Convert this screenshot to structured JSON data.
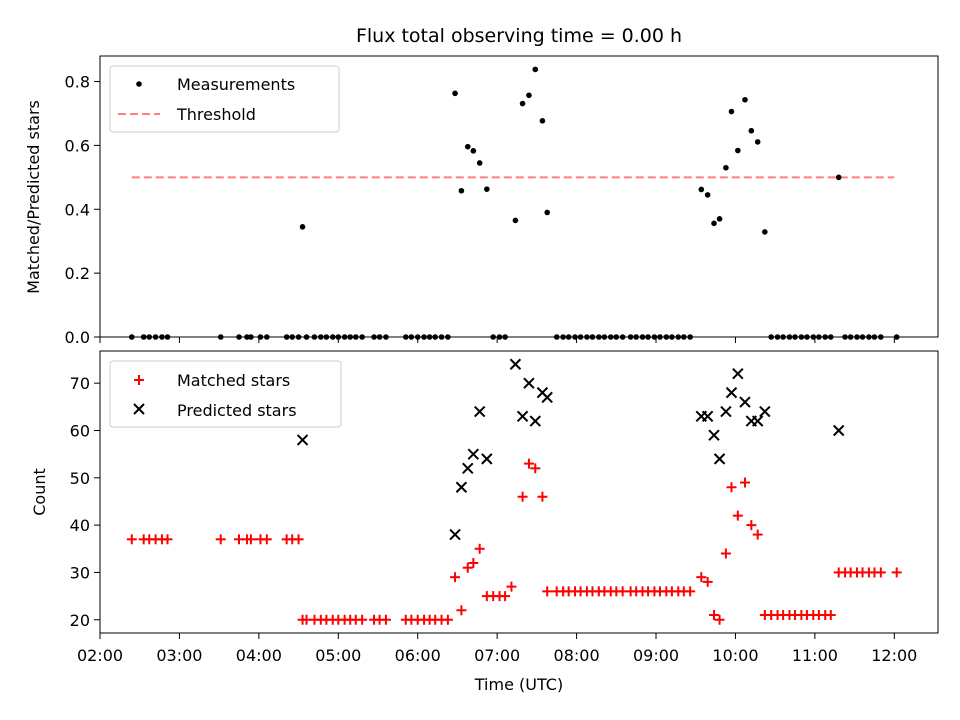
{
  "chart_data": [
    {
      "type": "scatter",
      "title": "Flux total observing time = 0.00 h",
      "xlabel": "",
      "ylabel": "Matched/Predicted stars",
      "ylim": [
        0,
        0.88
      ],
      "yticks": [
        "0.0",
        "0.2",
        "0.4",
        "0.6",
        "0.8"
      ],
      "ytick_values": [
        0,
        0.2,
        0.4,
        0.6,
        0.8
      ],
      "grid": false,
      "legend": "top-left",
      "series": [
        {
          "name": "Measurements",
          "marker": "dot",
          "color": "#000000",
          "points": [
            [
              2.4,
              0
            ],
            [
              2.55,
              0
            ],
            [
              2.62,
              0
            ],
            [
              2.7,
              0
            ],
            [
              2.78,
              0
            ],
            [
              2.85,
              0
            ],
            [
              3.52,
              0
            ],
            [
              3.75,
              0
            ],
            [
              3.85,
              0
            ],
            [
              3.9,
              0
            ],
            [
              4.02,
              0
            ],
            [
              4.1,
              0
            ],
            [
              4.35,
              0
            ],
            [
              4.42,
              0
            ],
            [
              4.5,
              0
            ],
            [
              4.55,
              0.345
            ],
            [
              4.6,
              0
            ],
            [
              4.7,
              0
            ],
            [
              4.78,
              0
            ],
            [
              4.85,
              0
            ],
            [
              4.93,
              0
            ],
            [
              5.0,
              0
            ],
            [
              5.08,
              0
            ],
            [
              5.15,
              0
            ],
            [
              5.22,
              0
            ],
            [
              5.3,
              0
            ],
            [
              5.45,
              0
            ],
            [
              5.52,
              0
            ],
            [
              5.6,
              0
            ],
            [
              5.85,
              0
            ],
            [
              5.92,
              0
            ],
            [
              6.0,
              0
            ],
            [
              6.08,
              0
            ],
            [
              6.15,
              0
            ],
            [
              6.22,
              0
            ],
            [
              6.3,
              0
            ],
            [
              6.38,
              0
            ],
            [
              6.47,
              0.763
            ],
            [
              6.55,
              0.458
            ],
            [
              6.63,
              0.596
            ],
            [
              6.7,
              0.583
            ],
            [
              6.78,
              0.545
            ],
            [
              6.87,
              0.463
            ],
            [
              6.95,
              0
            ],
            [
              7.03,
              0
            ],
            [
              7.1,
              0
            ],
            [
              7.23,
              0.365
            ],
            [
              7.32,
              0.731
            ],
            [
              7.4,
              0.757
            ],
            [
              7.48,
              0.838
            ],
            [
              7.57,
              0.677
            ],
            [
              7.63,
              0.39
            ],
            [
              7.75,
              0
            ],
            [
              7.83,
              0
            ],
            [
              7.9,
              0
            ],
            [
              7.98,
              0
            ],
            [
              8.05,
              0
            ],
            [
              8.13,
              0
            ],
            [
              8.2,
              0
            ],
            [
              8.28,
              0
            ],
            [
              8.35,
              0
            ],
            [
              8.43,
              0
            ],
            [
              8.5,
              0
            ],
            [
              8.58,
              0
            ],
            [
              8.68,
              0
            ],
            [
              8.75,
              0
            ],
            [
              8.83,
              0
            ],
            [
              8.9,
              0
            ],
            [
              8.98,
              0
            ],
            [
              9.05,
              0
            ],
            [
              9.13,
              0
            ],
            [
              9.2,
              0
            ],
            [
              9.28,
              0
            ],
            [
              9.35,
              0
            ],
            [
              9.43,
              0
            ],
            [
              9.57,
              0.462
            ],
            [
              9.65,
              0.445
            ],
            [
              9.73,
              0.356
            ],
            [
              9.8,
              0.37
            ],
            [
              9.88,
              0.53
            ],
            [
              9.95,
              0.706
            ],
            [
              10.03,
              0.584
            ],
            [
              10.12,
              0.743
            ],
            [
              10.2,
              0.646
            ],
            [
              10.28,
              0.611
            ],
            [
              10.37,
              0.329
            ],
            [
              10.45,
              0
            ],
            [
              10.53,
              0
            ],
            [
              10.6,
              0
            ],
            [
              10.68,
              0
            ],
            [
              10.75,
              0
            ],
            [
              10.83,
              0
            ],
            [
              10.9,
              0
            ],
            [
              10.98,
              0
            ],
            [
              11.05,
              0
            ],
            [
              11.13,
              0
            ],
            [
              11.2,
              0
            ],
            [
              11.3,
              0.5
            ],
            [
              11.38,
              0
            ],
            [
              11.45,
              0
            ],
            [
              11.53,
              0
            ],
            [
              11.6,
              0
            ],
            [
              11.68,
              0
            ],
            [
              11.75,
              0
            ],
            [
              11.83,
              0
            ],
            [
              12.03,
              0
            ]
          ]
        },
        {
          "name": "Threshold",
          "marker": "dashed-line",
          "color": "#ff7f7f",
          "points": [
            [
              2.4,
              0.5
            ],
            [
              12.0,
              0.5
            ]
          ]
        }
      ]
    },
    {
      "type": "scatter",
      "title": "",
      "xlabel": "Time (UTC)",
      "ylabel": "Count",
      "ylim": [
        17.2,
        76.8
      ],
      "yticks": [
        "20",
        "30",
        "40",
        "50",
        "60",
        "70"
      ],
      "ytick_values": [
        20,
        30,
        40,
        50,
        60,
        70
      ],
      "xlim": [
        2.0,
        12.55
      ],
      "xticks": [
        "02:00",
        "03:00",
        "04:00",
        "05:00",
        "06:00",
        "07:00",
        "08:00",
        "09:00",
        "10:00",
        "11:00",
        "12:00"
      ],
      "xtick_values": [
        2,
        3,
        4,
        5,
        6,
        7,
        8,
        9,
        10,
        11,
        12
      ],
      "grid": false,
      "legend": "top-left",
      "series": [
        {
          "name": "Matched stars",
          "marker": "plus",
          "color": "#ff0000",
          "points": [
            [
              2.4,
              37
            ],
            [
              2.55,
              37
            ],
            [
              2.62,
              37
            ],
            [
              2.7,
              37
            ],
            [
              2.78,
              37
            ],
            [
              2.85,
              37
            ],
            [
              3.52,
              37
            ],
            [
              3.75,
              37
            ],
            [
              3.85,
              37
            ],
            [
              3.9,
              37
            ],
            [
              4.02,
              37
            ],
            [
              4.1,
              37
            ],
            [
              4.35,
              37
            ],
            [
              4.42,
              37
            ],
            [
              4.5,
              37
            ],
            [
              4.55,
              20
            ],
            [
              4.6,
              20
            ],
            [
              4.7,
              20
            ],
            [
              4.78,
              20
            ],
            [
              4.85,
              20
            ],
            [
              4.93,
              20
            ],
            [
              5.0,
              20
            ],
            [
              5.08,
              20
            ],
            [
              5.15,
              20
            ],
            [
              5.22,
              20
            ],
            [
              5.3,
              20
            ],
            [
              5.45,
              20
            ],
            [
              5.52,
              20
            ],
            [
              5.6,
              20
            ],
            [
              5.85,
              20
            ],
            [
              5.92,
              20
            ],
            [
              6.0,
              20
            ],
            [
              6.08,
              20
            ],
            [
              6.15,
              20
            ],
            [
              6.22,
              20
            ],
            [
              6.3,
              20
            ],
            [
              6.38,
              20
            ],
            [
              6.47,
              29
            ],
            [
              6.55,
              22
            ],
            [
              6.63,
              31
            ],
            [
              6.7,
              32
            ],
            [
              6.78,
              35
            ],
            [
              6.87,
              25
            ],
            [
              6.95,
              25
            ],
            [
              7.03,
              25
            ],
            [
              7.1,
              25
            ],
            [
              7.18,
              27
            ],
            [
              7.32,
              46
            ],
            [
              7.4,
              53
            ],
            [
              7.48,
              52
            ],
            [
              7.57,
              46
            ],
            [
              7.63,
              26
            ],
            [
              7.75,
              26
            ],
            [
              7.83,
              26
            ],
            [
              7.9,
              26
            ],
            [
              7.98,
              26
            ],
            [
              8.05,
              26
            ],
            [
              8.13,
              26
            ],
            [
              8.2,
              26
            ],
            [
              8.28,
              26
            ],
            [
              8.35,
              26
            ],
            [
              8.43,
              26
            ],
            [
              8.5,
              26
            ],
            [
              8.58,
              26
            ],
            [
              8.68,
              26
            ],
            [
              8.75,
              26
            ],
            [
              8.83,
              26
            ],
            [
              8.9,
              26
            ],
            [
              8.98,
              26
            ],
            [
              9.05,
              26
            ],
            [
              9.13,
              26
            ],
            [
              9.2,
              26
            ],
            [
              9.28,
              26
            ],
            [
              9.35,
              26
            ],
            [
              9.43,
              26
            ],
            [
              9.57,
              29
            ],
            [
              9.65,
              28
            ],
            [
              9.73,
              21
            ],
            [
              9.8,
              20
            ],
            [
              9.88,
              34
            ],
            [
              9.95,
              48
            ],
            [
              10.03,
              42
            ],
            [
              10.12,
              49
            ],
            [
              10.2,
              40
            ],
            [
              10.28,
              38
            ],
            [
              10.37,
              21
            ],
            [
              10.45,
              21
            ],
            [
              10.53,
              21
            ],
            [
              10.6,
              21
            ],
            [
              10.68,
              21
            ],
            [
              10.75,
              21
            ],
            [
              10.83,
              21
            ],
            [
              10.9,
              21
            ],
            [
              10.98,
              21
            ],
            [
              11.05,
              21
            ],
            [
              11.13,
              21
            ],
            [
              11.2,
              21
            ],
            [
              11.3,
              30
            ],
            [
              11.38,
              30
            ],
            [
              11.45,
              30
            ],
            [
              11.53,
              30
            ],
            [
              11.6,
              30
            ],
            [
              11.68,
              30
            ],
            [
              11.75,
              30
            ],
            [
              11.83,
              30
            ],
            [
              12.03,
              30
            ]
          ]
        },
        {
          "name": "Predicted stars",
          "marker": "x",
          "color": "#000000",
          "points": [
            [
              4.55,
              58
            ],
            [
              6.47,
              38
            ],
            [
              6.55,
              48
            ],
            [
              6.63,
              52
            ],
            [
              6.7,
              55
            ],
            [
              6.78,
              64
            ],
            [
              6.87,
              54
            ],
            [
              7.23,
              74
            ],
            [
              7.32,
              63
            ],
            [
              7.4,
              70
            ],
            [
              7.48,
              62
            ],
            [
              7.57,
              68
            ],
            [
              7.63,
              67
            ],
            [
              9.57,
              63
            ],
            [
              9.65,
              63
            ],
            [
              9.73,
              59
            ],
            [
              9.8,
              54
            ],
            [
              9.88,
              64
            ],
            [
              9.95,
              68
            ],
            [
              10.03,
              72
            ],
            [
              10.12,
              66
            ],
            [
              10.2,
              62
            ],
            [
              10.28,
              62
            ],
            [
              10.37,
              64
            ],
            [
              11.3,
              60
            ]
          ]
        }
      ]
    }
  ]
}
